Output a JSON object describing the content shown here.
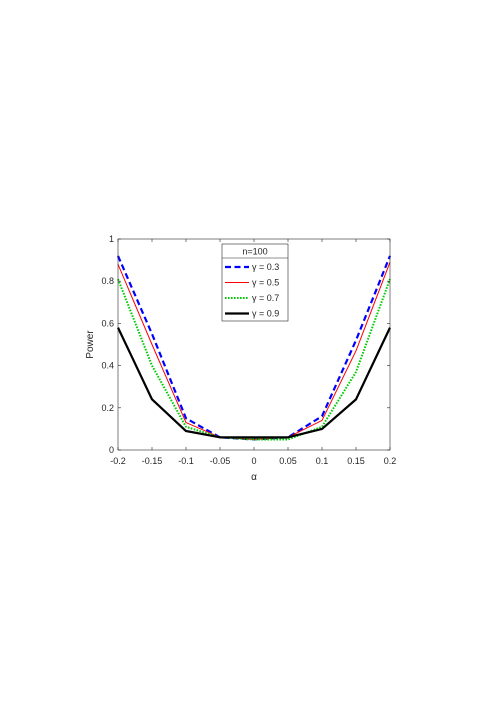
{
  "chart_data": {
    "type": "line",
    "xlabel": "α",
    "ylabel": "Power",
    "xlim": [
      -0.2,
      0.2
    ],
    "ylim": [
      0,
      1
    ],
    "xticks": [
      "-0.2",
      "-0.15",
      "-0.1",
      "-0.05",
      "0",
      "0.05",
      "0.1",
      "0.15",
      "0.2"
    ],
    "yticks": [
      "0",
      "0.2",
      "0.4",
      "0.6",
      "0.8",
      "1"
    ],
    "grid": false,
    "legend": {
      "title": "n=100",
      "placement": "top-center"
    },
    "x": [
      -0.2,
      -0.15,
      -0.1,
      -0.05,
      0,
      0.05,
      0.1,
      0.15,
      0.2
    ],
    "series": [
      {
        "name": "γ = 0.3",
        "color": "#0000ff",
        "style": "dashed",
        "values": [
          0.92,
          0.55,
          0.15,
          0.06,
          0.05,
          0.06,
          0.16,
          0.52,
          0.92
        ]
      },
      {
        "name": "γ = 0.5",
        "color": "#ff0000",
        "style": "solid",
        "values": [
          0.88,
          0.5,
          0.13,
          0.06,
          0.05,
          0.06,
          0.14,
          0.47,
          0.89
        ]
      },
      {
        "name": "γ = 0.7",
        "color": "#00cc00",
        "style": "dotted",
        "values": [
          0.81,
          0.4,
          0.11,
          0.06,
          0.05,
          0.05,
          0.11,
          0.37,
          0.81
        ]
      },
      {
        "name": "γ = 0.9",
        "color": "#000000",
        "style": "solid-thick",
        "values": [
          0.58,
          0.24,
          0.09,
          0.06,
          0.06,
          0.06,
          0.1,
          0.24,
          0.58
        ]
      }
    ]
  }
}
